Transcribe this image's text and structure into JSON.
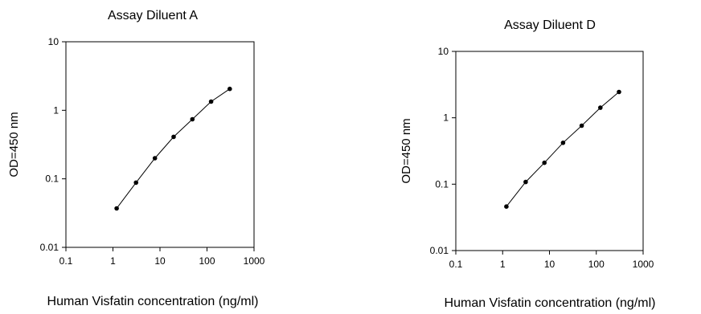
{
  "chart_data": [
    {
      "type": "scatter",
      "title": "Assay Diluent A",
      "xlabel": "Human Visfatin concentration (ng/ml)",
      "ylabel": "OD=450 nm",
      "x_scale": "log",
      "y_scale": "log",
      "xlim": [
        0.1,
        1000
      ],
      "ylim": [
        0.01,
        10
      ],
      "x_ticks": [
        "0.1",
        "1",
        "10",
        "100",
        "1000"
      ],
      "y_ticks": [
        "0.01",
        "0.1",
        "1",
        "10"
      ],
      "grid": false,
      "series": [
        {
          "x": [
            1.2,
            3.1,
            7.8,
            19.5,
            48.8,
            122,
            305
          ],
          "y": [
            0.037,
            0.088,
            0.2,
            0.41,
            0.74,
            1.34,
            2.05
          ]
        }
      ]
    },
    {
      "type": "scatter",
      "title": "Assay Diluent D",
      "xlabel": "Human Visfatin concentration (ng/ml)",
      "ylabel": "OD=450 nm",
      "x_scale": "log",
      "y_scale": "log",
      "xlim": [
        0.1,
        1000
      ],
      "ylim": [
        0.01,
        10
      ],
      "x_ticks": [
        "0.1",
        "1",
        "10",
        "100",
        "1000"
      ],
      "y_ticks": [
        "0.01",
        "0.1",
        "1",
        "10"
      ],
      "grid": false,
      "series": [
        {
          "x": [
            1.2,
            3.1,
            7.8,
            19.5,
            48.8,
            122,
            305
          ],
          "y": [
            0.046,
            0.108,
            0.21,
            0.42,
            0.76,
            1.42,
            2.45
          ]
        }
      ]
    }
  ]
}
